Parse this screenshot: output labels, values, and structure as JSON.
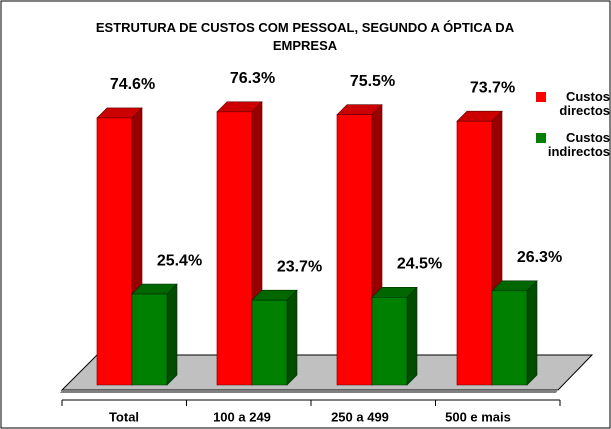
{
  "chart_data": {
    "type": "bar3d",
    "title": "ESTRUTURA DE CUSTOS COM PESSOAL, SEGUNDO A ÓPTICA DA EMPRESA",
    "categories": [
      "Total",
      "100 a 249",
      "250 a 499",
      "500 e mais"
    ],
    "series": [
      {
        "name": "Custos directos",
        "color": "#ff0000",
        "values": [
          74.6,
          76.3,
          75.5,
          73.7
        ],
        "value_labels": [
          "74.6%",
          "76.3%",
          "75.5%",
          "73.7%"
        ]
      },
      {
        "name": "Custos indirectos",
        "color": "#008000",
        "values": [
          25.4,
          23.7,
          24.5,
          26.3
        ],
        "value_labels": [
          "25.4%",
          "23.7%",
          "24.5%",
          "26.3%"
        ]
      }
    ]
  }
}
